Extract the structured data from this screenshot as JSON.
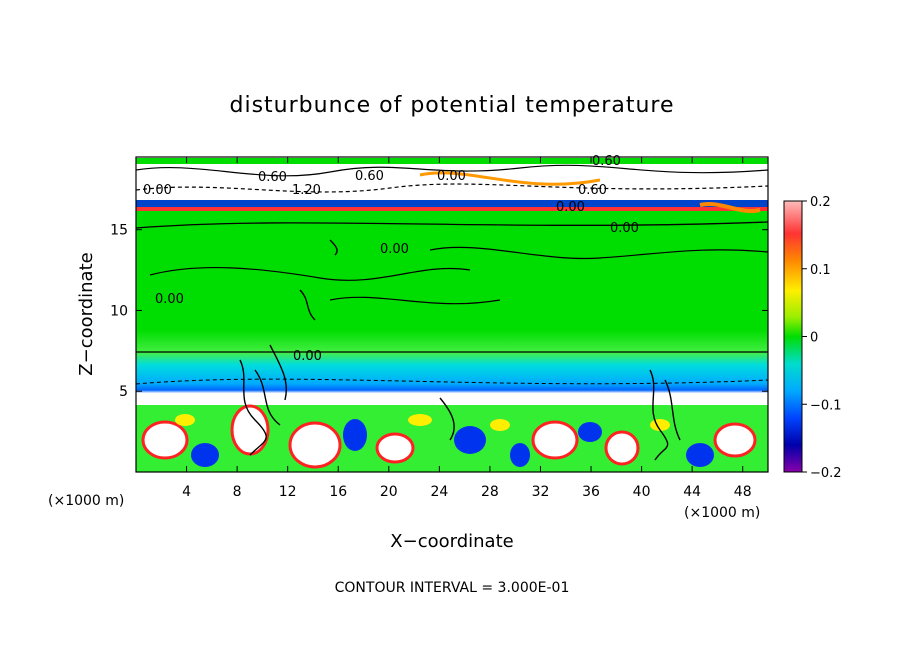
{
  "chart_data": {
    "type": "heatmap",
    "title": "disturbunce of potential temperature",
    "xlabel": "X−coordinate",
    "ylabel": "Z−coordinate",
    "x_unit_label": "(×1000 m)",
    "x_unit_label_right": "(×1000 m)",
    "xlim": [
      0,
      50
    ],
    "ylim": [
      0,
      19.5
    ],
    "x_ticks": [
      4,
      8,
      12,
      16,
      20,
      24,
      28,
      32,
      36,
      40,
      44,
      48
    ],
    "x_tick_labels": [
      "4",
      "8",
      "12",
      "16",
      "20",
      "24",
      "28",
      "32",
      "36",
      "40",
      "44",
      "48"
    ],
    "y_ticks": [
      5,
      10,
      15
    ],
    "y_tick_labels": [
      "5",
      "10",
      "15"
    ],
    "colorbar": {
      "min": -0.2,
      "max": 0.2,
      "ticks": [
        0.2,
        0.1,
        0,
        -0.1,
        -0.2
      ],
      "tick_labels": [
        "0.2",
        "0.1",
        "0",
        "−0.1",
        "−0.2"
      ]
    },
    "contour_labels": [
      "0.60",
      "0.00",
      "0.60",
      "1.20",
      "0.60",
      "0.00",
      "0.60",
      "0.00",
      "0.00",
      "0.00",
      "0.00",
      "0.00"
    ],
    "footnote": "CONTOUR INTERVAL = 3.000E-01",
    "colors": {
      "bg": "#00dd00",
      "green_light": "#33ee33",
      "cyan": "#00ccff",
      "blue": "#0066ff",
      "navy": "#0000aa",
      "yellow": "#eeee00",
      "orange": "#ff9900",
      "red": "#ee0000",
      "pink": "#ff9999",
      "white": "#ffffff"
    }
  }
}
